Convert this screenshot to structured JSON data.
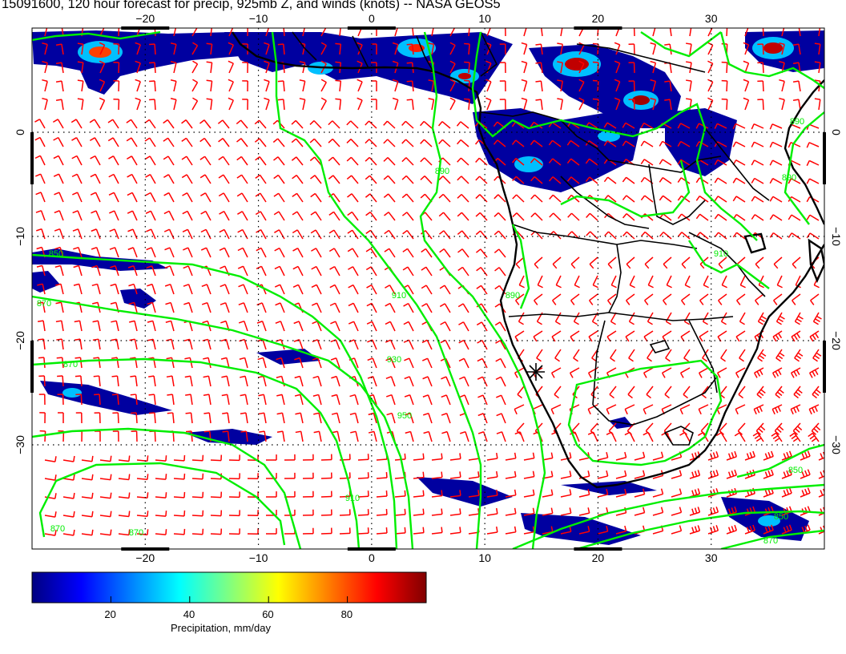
{
  "title": "15091600, 120 hour forecast for precip, 925mb Z, and winds (knots) -- NASA GEOS5",
  "map": {
    "lon_range": [
      -30,
      40
    ],
    "lat_range": [
      -40,
      10
    ],
    "lon_ticks": [
      "−20",
      "−10",
      "0",
      "10",
      "20",
      "30"
    ],
    "lat_ticks": [
      "0",
      "−10",
      "−20",
      "−30"
    ],
    "lon_tick_values": [
      -20,
      -10,
      0,
      10,
      20,
      30
    ],
    "lat_tick_values": [
      0,
      -10,
      -20,
      -30
    ],
    "grid_lines": "dotted",
    "contour_color": "#00ee00",
    "coast_color": "#000000",
    "wind_barb_color": "#ff0000",
    "contour_labels": [
      "850",
      "870",
      "870",
      "870",
      "870",
      "890",
      "910",
      "930",
      "950",
      "910",
      "890",
      "910",
      "890",
      "850",
      "850",
      "870",
      "890"
    ],
    "wind_barbs": "red wind barbs on regular grid"
  },
  "colorbar": {
    "label": "Precipitation, mm/day",
    "ticks": [
      "20",
      "40",
      "60",
      "80"
    ],
    "tick_values": [
      20,
      40,
      60,
      80
    ],
    "range": [
      0,
      100
    ],
    "colors": [
      "#000080",
      "#0000ff",
      "#0080ff",
      "#00ffff",
      "#80ff80",
      "#ffff00",
      "#ff8000",
      "#ff0000",
      "#800000"
    ]
  }
}
